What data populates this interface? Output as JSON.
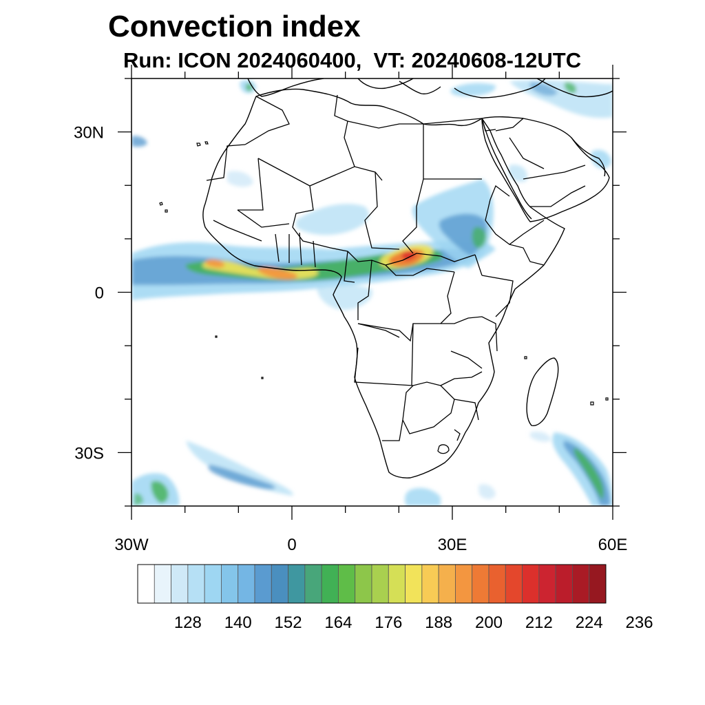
{
  "title": "Convection index",
  "subtitle": "Run: ICON 2024060400,  VT: 20240608-12UTC",
  "map": {
    "lon_range": [
      -30,
      60
    ],
    "lat_range": [
      -40,
      40
    ],
    "lat_ticks": [
      {
        "value": 30,
        "label": "30N"
      },
      {
        "value": 0,
        "label": "0"
      },
      {
        "value": -30,
        "label": "30S"
      }
    ],
    "lon_ticks": [
      {
        "value": -30,
        "label": "30W"
      },
      {
        "value": 0,
        "label": "0"
      },
      {
        "value": 30,
        "label": "30E"
      },
      {
        "value": 60,
        "label": "60E"
      }
    ]
  },
  "colorbar": {
    "labels": [
      "128",
      "140",
      "152",
      "164",
      "176",
      "188",
      "200",
      "212",
      "224",
      "236"
    ],
    "colors": [
      "#ffffff",
      "#e8f4fb",
      "#cfe9f7",
      "#b6e0f5",
      "#9ed6f2",
      "#84c5ea",
      "#74b6e4",
      "#5a9bd0",
      "#4a8fbf",
      "#3f97a0",
      "#48a67a",
      "#41b155",
      "#5fbd48",
      "#8dc64a",
      "#a9d04f",
      "#d5df56",
      "#f2e35a",
      "#f8cb55",
      "#f5b04c",
      "#f39640",
      "#ee7a35",
      "#e9612f",
      "#e4472c",
      "#dc302c",
      "#cc2430",
      "#bb1d2b",
      "#a91b25",
      "#961820"
    ]
  }
}
